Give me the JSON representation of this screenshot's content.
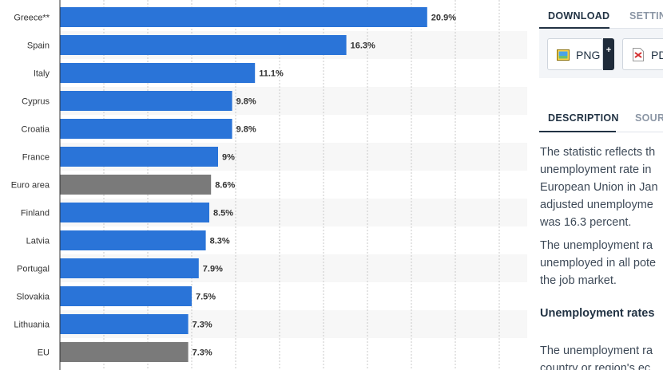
{
  "chart_data": {
    "type": "bar",
    "orientation": "horizontal",
    "categories": [
      "Greece**",
      "Spain",
      "Italy",
      "Cyprus",
      "Croatia",
      "France",
      "Euro area",
      "Finland",
      "Latvia",
      "Portugal",
      "Slovakia",
      "Lithuania",
      "EU"
    ],
    "values": [
      20.9,
      16.3,
      11.1,
      9.8,
      9.8,
      9.0,
      8.6,
      8.5,
      8.3,
      7.9,
      7.5,
      7.3,
      7.3
    ],
    "value_labels": [
      "20.9%",
      "16.3%",
      "11.1%",
      "9.8%",
      "9.8%",
      "9%",
      "8.6%",
      "8.5%",
      "8.3%",
      "7.9%",
      "7.5%",
      "7.3%",
      "7.3%"
    ],
    "highlight": [
      "country",
      "country",
      "country",
      "country",
      "country",
      "country",
      "aggregate",
      "country",
      "country",
      "country",
      "country",
      "country",
      "aggregate"
    ],
    "colors": {
      "country": "#2a74d8",
      "aggregate": "#7a7a7a"
    },
    "xlim": [
      0,
      25
    ],
    "grid": true,
    "unit": "%"
  },
  "sidebar": {
    "tabs": [
      "DOWNLOAD",
      "SETTINGS"
    ],
    "active_tab": "DOWNLOAD",
    "downloads": [
      {
        "label": "PNG",
        "icon": "png-file-icon"
      },
      {
        "label": "PDF",
        "icon": "pdf-file-icon"
      }
    ],
    "plus_label": "+",
    "desc_tabs": [
      "DESCRIPTION",
      "SOURCE"
    ],
    "active_desc_tab": "DESCRIPTION",
    "description_lines_1": [
      "The statistic reflects th",
      "unemployment rate in",
      "European Union in Jan",
      "adjusted unemployme",
      "was 16.3 percent."
    ],
    "description_lines_2": [
      "The unemployment ra",
      "unemployed in all pote",
      "the job market."
    ],
    "subheading": "Unemployment rates",
    "description_lines_3": [
      "The unemployment ra",
      "country or region's ec"
    ]
  }
}
